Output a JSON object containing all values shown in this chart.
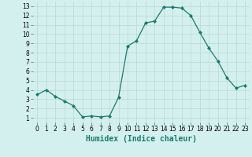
{
  "x": [
    0,
    1,
    2,
    3,
    4,
    5,
    6,
    7,
    8,
    9,
    10,
    11,
    12,
    13,
    14,
    15,
    16,
    17,
    18,
    19,
    20,
    21,
    22,
    23
  ],
  "y": [
    3.5,
    4.0,
    3.3,
    2.8,
    2.3,
    1.1,
    1.2,
    1.1,
    1.2,
    3.2,
    8.7,
    9.3,
    11.2,
    11.4,
    12.9,
    12.9,
    12.8,
    12.0,
    10.2,
    8.5,
    7.1,
    5.3,
    4.2,
    4.5
  ],
  "line_color": "#1a7a6e",
  "marker": "D",
  "marker_size": 2.0,
  "bg_color": "#d4f0ee",
  "grid_color": "#b8d8d5",
  "xlabel": "Humidex (Indice chaleur)",
  "xlim": [
    -0.5,
    23.5
  ],
  "ylim": [
    0.5,
    13.5
  ],
  "xticks": [
    0,
    1,
    2,
    3,
    4,
    5,
    6,
    7,
    8,
    9,
    10,
    11,
    12,
    13,
    14,
    15,
    16,
    17,
    18,
    19,
    20,
    21,
    22,
    23
  ],
  "yticks": [
    1,
    2,
    3,
    4,
    5,
    6,
    7,
    8,
    9,
    10,
    11,
    12,
    13
  ],
  "tick_fontsize": 5.5,
  "xlabel_fontsize": 7.0
}
